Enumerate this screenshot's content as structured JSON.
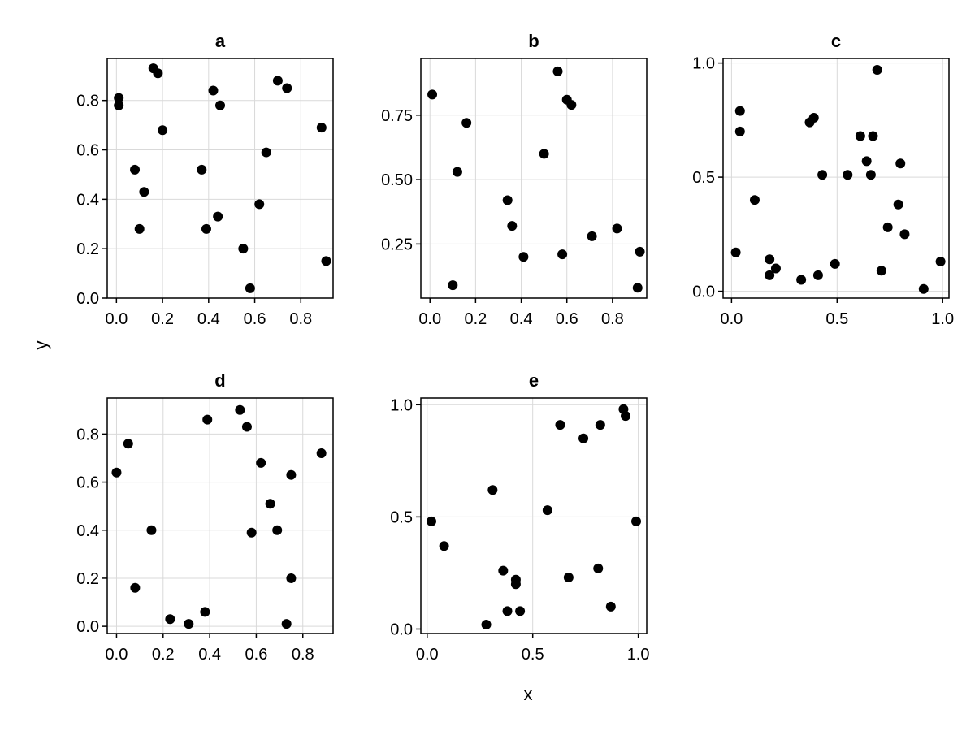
{
  "chart_data": {
    "type": "scatter",
    "xlabel": "x",
    "ylabel": "y",
    "panels": [
      {
        "title": "a",
        "xlim": [
          -0.04,
          0.94
        ],
        "ylim": [
          0.0,
          0.97
        ],
        "xticks": [
          0.0,
          0.2,
          0.4,
          0.6,
          0.8
        ],
        "xtick_labels": [
          "0.0",
          "0.2",
          "0.4",
          "0.6",
          "0.8"
        ],
        "yticks": [
          0.0,
          0.2,
          0.4,
          0.6,
          0.8
        ],
        "ytick_labels": [
          "0.0",
          "0.2",
          "0.4",
          "0.6",
          "0.8"
        ],
        "x": [
          0.01,
          0.01,
          0.16,
          0.18,
          0.42,
          0.45,
          0.2,
          0.7,
          0.74,
          0.89,
          0.08,
          0.12,
          0.1,
          0.37,
          0.39,
          0.44,
          0.65,
          0.62,
          0.55,
          0.58,
          0.91
        ],
        "y": [
          0.81,
          0.78,
          0.93,
          0.91,
          0.84,
          0.78,
          0.68,
          0.88,
          0.85,
          0.69,
          0.52,
          0.43,
          0.28,
          0.52,
          0.28,
          0.33,
          0.59,
          0.38,
          0.2,
          0.04,
          0.15
        ]
      },
      {
        "title": "b",
        "xlim": [
          -0.04,
          0.95
        ],
        "ylim": [
          0.04,
          0.97
        ],
        "xticks": [
          0.0,
          0.2,
          0.4,
          0.6,
          0.8
        ],
        "xtick_labels": [
          "0.0",
          "0.2",
          "0.4",
          "0.6",
          "0.8"
        ],
        "yticks": [
          0.25,
          0.5,
          0.75
        ],
        "ytick_labels": [
          "0.25",
          "0.50",
          "0.75"
        ],
        "x": [
          0.01,
          0.56,
          0.6,
          0.62,
          0.16,
          0.12,
          0.5,
          0.34,
          0.36,
          0.41,
          0.1,
          0.58,
          0.71,
          0.82,
          0.92,
          0.91
        ],
        "y": [
          0.83,
          0.92,
          0.81,
          0.79,
          0.72,
          0.53,
          0.6,
          0.42,
          0.32,
          0.2,
          0.09,
          0.21,
          0.28,
          0.31,
          0.22,
          0.08
        ]
      },
      {
        "title": "c",
        "xlim": [
          -0.04,
          1.03
        ],
        "ylim": [
          -0.03,
          1.02
        ],
        "xticks": [
          0.0,
          0.5,
          1.0
        ],
        "xtick_labels": [
          "0.0",
          "0.5",
          "1.0"
        ],
        "yticks": [
          0.0,
          0.5,
          1.0
        ],
        "ytick_labels": [
          "0.0",
          "0.5",
          "1.0"
        ],
        "x": [
          0.69,
          0.04,
          0.04,
          0.39,
          0.37,
          0.61,
          0.67,
          0.64,
          0.66,
          0.8,
          0.11,
          0.43,
          0.55,
          0.79,
          0.74,
          0.82,
          0.02,
          0.18,
          0.21,
          0.18,
          0.33,
          0.41,
          0.49,
          0.71,
          0.91,
          0.99
        ],
        "y": [
          0.97,
          0.79,
          0.7,
          0.76,
          0.74,
          0.68,
          0.68,
          0.57,
          0.51,
          0.56,
          0.4,
          0.51,
          0.51,
          0.38,
          0.28,
          0.25,
          0.17,
          0.14,
          0.1,
          0.07,
          0.05,
          0.07,
          0.12,
          0.09,
          0.01,
          0.13
        ]
      },
      {
        "title": "d",
        "xlim": [
          -0.04,
          0.93
        ],
        "ylim": [
          -0.03,
          0.95
        ],
        "xticks": [
          0.0,
          0.2,
          0.4,
          0.6,
          0.8
        ],
        "xtick_labels": [
          "0.0",
          "0.2",
          "0.4",
          "0.6",
          "0.8"
        ],
        "yticks": [
          0.0,
          0.2,
          0.4,
          0.6,
          0.8
        ],
        "ytick_labels": [
          "0.0",
          "0.2",
          "0.4",
          "0.6",
          "0.8"
        ],
        "x": [
          0.53,
          0.39,
          0.56,
          0.05,
          0.0,
          0.62,
          0.75,
          0.88,
          0.66,
          0.15,
          0.58,
          0.69,
          0.08,
          0.75,
          0.23,
          0.31,
          0.38,
          0.73
        ],
        "y": [
          0.9,
          0.86,
          0.83,
          0.76,
          0.64,
          0.68,
          0.63,
          0.72,
          0.51,
          0.4,
          0.39,
          0.4,
          0.16,
          0.2,
          0.03,
          0.01,
          0.06,
          0.01
        ]
      },
      {
        "title": "e",
        "xlim": [
          -0.03,
          1.04
        ],
        "ylim": [
          -0.02,
          1.03
        ],
        "xticks": [
          0.0,
          0.5,
          1.0
        ],
        "xtick_labels": [
          "0.0",
          "0.5",
          "1.0"
        ],
        "yticks": [
          0.0,
          0.5,
          1.0
        ],
        "ytick_labels": [
          "0.0",
          "0.5",
          "1.0"
        ],
        "x": [
          0.93,
          0.94,
          0.63,
          0.82,
          0.74,
          0.31,
          0.57,
          0.02,
          0.99,
          0.08,
          0.36,
          0.42,
          0.42,
          0.67,
          0.81,
          0.38,
          0.44,
          0.28,
          0.87
        ],
        "y": [
          0.98,
          0.95,
          0.91,
          0.91,
          0.85,
          0.62,
          0.53,
          0.48,
          0.48,
          0.37,
          0.26,
          0.2,
          0.22,
          0.23,
          0.27,
          0.08,
          0.08,
          0.02,
          0.1
        ]
      }
    ]
  }
}
